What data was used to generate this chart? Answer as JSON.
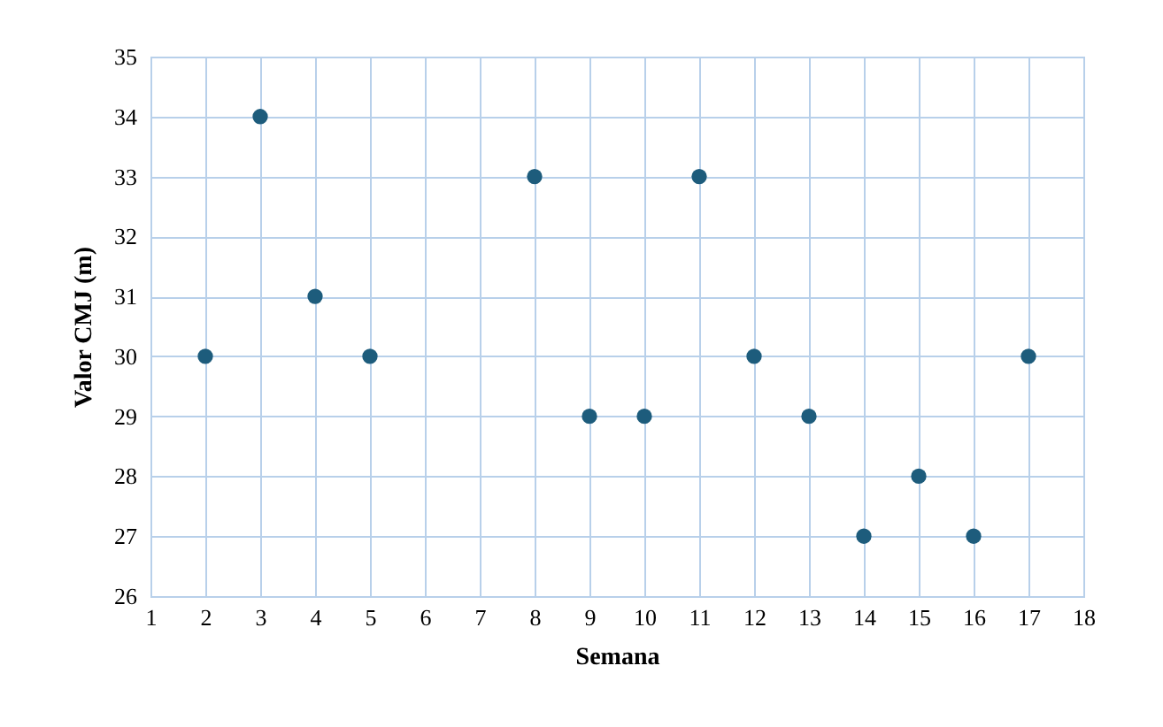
{
  "chart_data": {
    "type": "scatter",
    "xlabel": "Semana",
    "ylabel": "Valor CMJ (m)",
    "x": [
      2,
      3,
      4,
      5,
      8,
      9,
      10,
      11,
      12,
      13,
      14,
      15,
      16,
      17
    ],
    "series": [
      {
        "color": "#1d5c7c",
        "values": [
          30,
          34,
          31,
          30,
          33,
          29,
          29,
          33,
          30,
          29,
          27,
          28,
          27,
          30
        ]
      }
    ],
    "xlim": [
      1,
      18
    ],
    "xticks": [
      1,
      2,
      3,
      4,
      5,
      6,
      7,
      8,
      9,
      10,
      11,
      12,
      13,
      14,
      15,
      16,
      17,
      18
    ],
    "ylim": [
      26,
      35
    ],
    "yticks": [
      26,
      27,
      28,
      29,
      30,
      31,
      32,
      33,
      34,
      35
    ],
    "grid": true,
    "marker": "circle",
    "legend": false
  }
}
